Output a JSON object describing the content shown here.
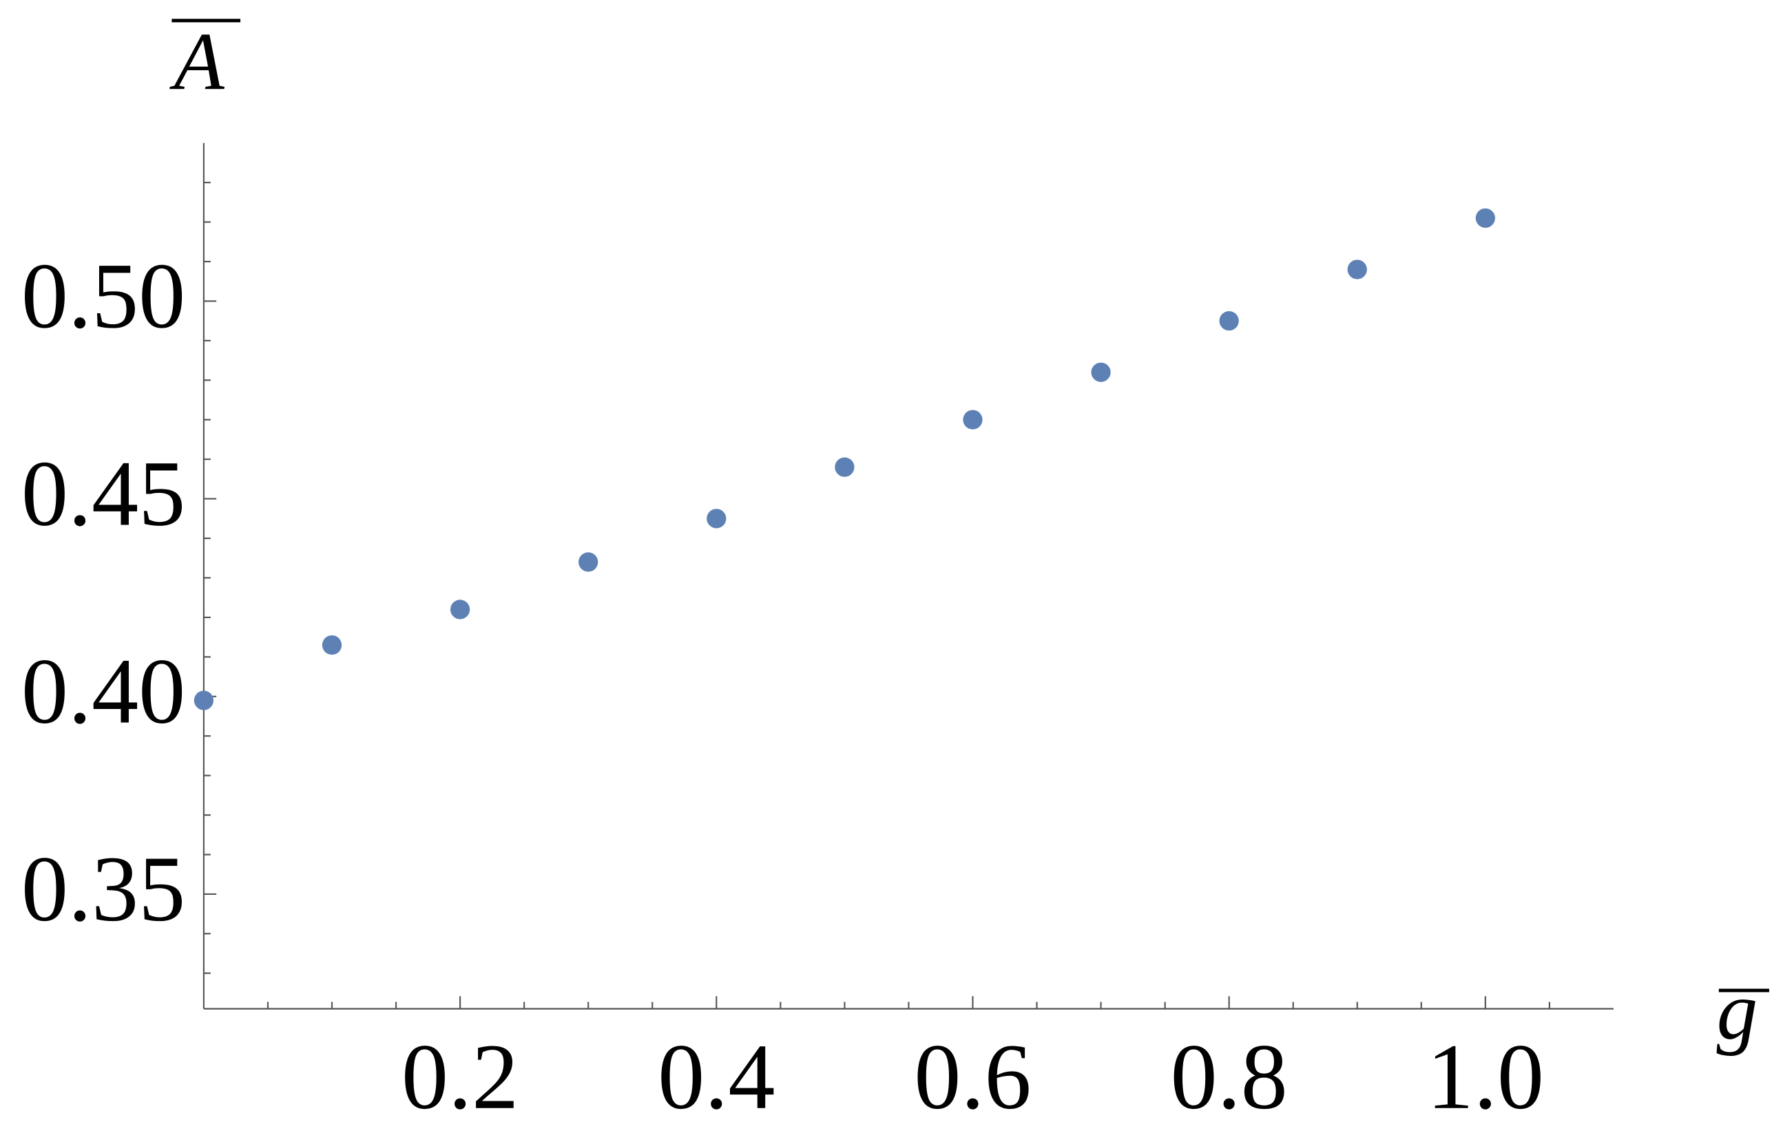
{
  "chart_data": {
    "type": "scatter",
    "xlabel": "g",
    "ylabel": "A",
    "x": [
      0,
      0.1,
      0.2,
      0.3,
      0.4,
      0.5,
      0.6,
      0.7,
      0.8,
      0.9,
      1.0
    ],
    "series": [
      {
        "color": "#5e81b5",
        "values": [
          0.399,
          0.413,
          0.422,
          0.434,
          0.445,
          0.458,
          0.47,
          0.482,
          0.495,
          0.508,
          0.521
        ]
      }
    ],
    "xlim": [
      0,
      1.1
    ],
    "ylim": [
      0.321,
      0.54
    ],
    "xticks": [
      0.2,
      0.4,
      0.6,
      0.8,
      {
        "value": 1,
        "label": "1.0"
      }
    ],
    "yticks": [
      0.35,
      {
        "value": 0.4,
        "label": "0.40"
      },
      0.45,
      {
        "value": 0.5,
        "label": "0.50"
      }
    ],
    "xminorticks": [
      0.05,
      0.1,
      0.15,
      0.25,
      0.3,
      0.35,
      0.45,
      0.5,
      0.55,
      0.65,
      0.7,
      0.75,
      0.85,
      0.9,
      0.95,
      1.05
    ],
    "yminorticks": [
      0.33,
      0.34,
      0.36,
      0.37,
      0.38,
      0.39,
      0.41,
      0.42,
      0.43,
      0.44,
      0.46,
      0.47,
      0.48,
      0.49,
      0.51,
      0.52,
      0.53
    ]
  }
}
